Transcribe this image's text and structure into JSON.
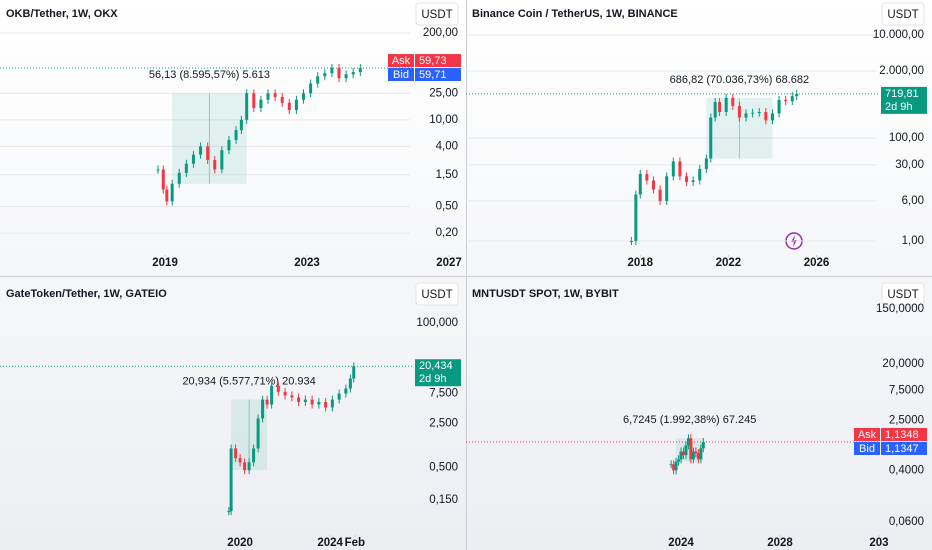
{
  "chart_data": [
    {
      "type": "candlestick",
      "title": "OKB/Tether, 1W, OKX",
      "currency": "USDT",
      "log_scale": true,
      "grid": true,
      "annotation": "56,13 (8.595,57%) 5.613",
      "up_color": "#089981",
      "down_color": "#f23645",
      "x": [
        2018.8,
        2018.95,
        2019.05,
        2019.2,
        2019.4,
        2019.6,
        2019.8,
        2020.0,
        2020.2,
        2020.4,
        2020.6,
        2020.8,
        2021.0,
        2021.15,
        2021.3,
        2021.5,
        2021.7,
        2021.9,
        2022.1,
        2022.3,
        2022.5,
        2022.7,
        2022.9,
        2023.1,
        2023.3,
        2023.5,
        2023.7,
        2023.9,
        2024.1,
        2024.3,
        2024.5
      ],
      "values": [
        1.8,
        0.9,
        0.6,
        1.1,
        1.6,
        2.2,
        3.0,
        4.0,
        2.5,
        1.8,
        3.5,
        5.0,
        7.0,
        10.0,
        25.0,
        15.0,
        20.0,
        25.0,
        22.0,
        18.0,
        14.0,
        20.0,
        25.0,
        35.0,
        45.0,
        50.0,
        60.0,
        42.0,
        48.0,
        52.0,
        59.73
      ],
      "xlim": [
        2014.35,
        2025.9
      ],
      "xticks": [
        2019,
        2023,
        2027
      ],
      "ylim": [
        0.133,
        625
      ],
      "yticks": [
        {
          "value": 200,
          "label": "200,00"
        },
        {
          "value": 25,
          "label": "25,00"
        },
        {
          "value": 10,
          "label": "10,00"
        },
        {
          "value": 4,
          "label": "4,00"
        },
        {
          "value": 1.5,
          "label": "1,50"
        },
        {
          "value": 0.5,
          "label": "0,50"
        },
        {
          "value": 0.2,
          "label": "0,20"
        }
      ],
      "price_tags": [
        {
          "name": "Ask",
          "value": 59.73,
          "label": "59,73",
          "color": "#f23645"
        },
        {
          "name": "Bid",
          "value": 59.71,
          "label": "59,71",
          "color": "#2962ff"
        }
      ],
      "line_color": "#089981"
    },
    {
      "type": "candlestick",
      "title": "Binance Coin / TetherUS, 1W, BINANCE",
      "currency": "USDT",
      "log_scale": true,
      "grid": true,
      "annotation": "686,82 (70.036,73%) 68.682",
      "up_color": "#089981",
      "down_color": "#f23645",
      "x": [
        2017.6,
        2017.8,
        2018.0,
        2018.3,
        2018.6,
        2018.9,
        2019.2,
        2019.5,
        2019.8,
        2020.1,
        2020.4,
        2020.7,
        2021.0,
        2021.2,
        2021.4,
        2021.6,
        2021.9,
        2022.2,
        2022.5,
        2022.8,
        2023.1,
        2023.4,
        2023.7,
        2024.0,
        2024.3,
        2024.6,
        2024.9,
        2025.1
      ],
      "values": [
        1.0,
        8.0,
        20.0,
        15.0,
        10.0,
        6.0,
        18.0,
        35.0,
        18.0,
        14.0,
        15.0,
        25.0,
        40.0,
        250.0,
        500.0,
        320.0,
        600.0,
        420.0,
        250.0,
        300.0,
        310.0,
        320.0,
        220.0,
        300.0,
        550.0,
        520.0,
        650.0,
        719.81
      ],
      "xlim": [
        2010.09,
        2028.7
      ],
      "xticks": [
        2018,
        2022,
        2026
      ],
      "ylim": [
        0.836,
        47900
      ],
      "yticks": [
        {
          "value": 10000,
          "label": "10.000,00"
        },
        {
          "value": 2000,
          "label": "2.000,00"
        },
        {
          "value": 100,
          "label": "100,00"
        },
        {
          "value": 30,
          "label": "30,00"
        },
        {
          "value": 6,
          "label": "6,00"
        },
        {
          "value": 1,
          "label": "1,00"
        }
      ],
      "price_tags": [
        {
          "value": 719.81,
          "label": "719,81",
          "sub": "2d 9h",
          "color": "#089981"
        }
      ],
      "line_color": "#089981"
    },
    {
      "type": "candlestick",
      "title": "GateToken/Tether, 1W, GATEIO",
      "currency": "USDT",
      "log_scale": true,
      "grid": false,
      "annotation": "20,934 (5.577,71%) 20.934",
      "up_color": "#089981",
      "down_color": "#f23645",
      "x": [
        2019.5,
        2019.6,
        2019.8,
        2020.0,
        2020.2,
        2020.4,
        2020.6,
        2020.8,
        2021.0,
        2021.2,
        2021.4,
        2021.7,
        2022.0,
        2022.3,
        2022.6,
        2022.9,
        2023.2,
        2023.5,
        2023.8,
        2024.1,
        2024.4,
        2024.7,
        2024.9,
        2025.05
      ],
      "values": [
        0.1,
        1.0,
        0.7,
        0.6,
        0.45,
        0.6,
        1.0,
        3.0,
        6.0,
        5.0,
        10.0,
        8.0,
        7.0,
        6.5,
        5.5,
        6.0,
        5.0,
        5.5,
        4.5,
        6.0,
        7.5,
        9.0,
        13.0,
        20.434
      ],
      "xlim": [
        2009.33,
        2027.55
      ],
      "xticks": [
        2020,
        2024,
        {
          "value": 2025.1,
          "label": "Feb"
        }
      ],
      "ylim": [
        0.06,
        485
      ],
      "yticks": [
        {
          "value": 100,
          "label": "100,000"
        },
        {
          "value": 7.5,
          "label": "7,500"
        },
        {
          "value": 2.5,
          "label": "2,500"
        },
        {
          "value": 0.5,
          "label": "0,500"
        },
        {
          "value": 0.15,
          "label": "0,150"
        }
      ],
      "price_tags": [
        {
          "value": 20.434,
          "label": "20,434",
          "sub": "2d 9h",
          "color": "#089981"
        }
      ],
      "line_color": "#089981"
    },
    {
      "type": "candlestick",
      "title": "MNTUSDT SPOT, 1W, BYBIT",
      "currency": "USDT",
      "log_scale": true,
      "grid": false,
      "annotation": "6,7245 (1.992,38%) 67.245",
      "up_color": "#089981",
      "down_color": "#f23645",
      "x": [
        2023.6,
        2023.7,
        2023.8,
        2023.9,
        2024.0,
        2024.1,
        2024.2,
        2024.3,
        2024.4,
        2024.5,
        2024.6,
        2024.7,
        2024.8,
        2024.9
      ],
      "values": [
        0.5,
        0.4,
        0.55,
        0.6,
        0.8,
        0.7,
        1.0,
        1.3,
        0.6,
        0.8,
        0.75,
        0.6,
        0.9,
        1.1348
      ],
      "xlim": [
        2015.31,
        2031.88
      ],
      "xticks": [
        2024,
        2028,
        {
          "value": 2032,
          "label": "203"
        }
      ],
      "ylim": [
        0.0538,
        435
      ],
      "yticks": [
        {
          "value": 150,
          "label": "150,0000"
        },
        {
          "value": 20,
          "label": "20,0000"
        },
        {
          "value": 7.5,
          "label": "7,5000"
        },
        {
          "value": 2.5,
          "label": "2,5000"
        },
        {
          "value": 0.4,
          "label": "0,4000"
        },
        {
          "value": 0.06,
          "label": "0,0600"
        }
      ],
      "price_tags": [
        {
          "name": "Ask",
          "value": 1.1348,
          "label": "1,1348",
          "color": "#f23645"
        },
        {
          "name": "Bid",
          "value": 1.1347,
          "label": "1,1347",
          "color": "#2962ff"
        }
      ],
      "line_color": "#f23645"
    }
  ]
}
